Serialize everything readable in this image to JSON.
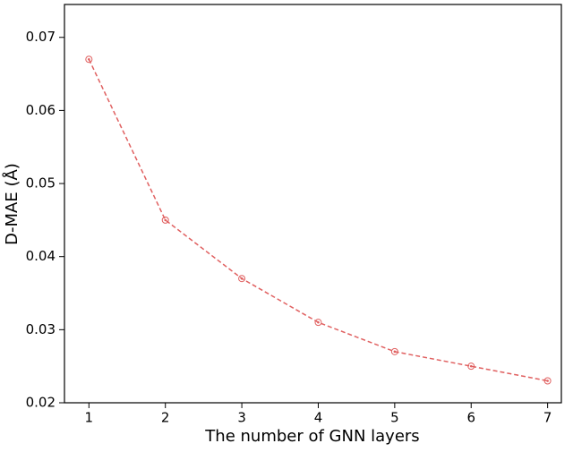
{
  "chart_data": {
    "type": "line",
    "x_label": "The number of GNN layers",
    "y_label": "D-MAE (Å)",
    "x": [
      1,
      2,
      3,
      4,
      5,
      6,
      7
    ],
    "series": [
      {
        "color": "#e06060",
        "values": [
          0.067,
          0.045,
          0.037,
          0.031,
          0.027,
          0.025,
          0.023
        ]
      }
    ],
    "xlim": [
      0.68,
      7.18
    ],
    "xticks": [
      1,
      2,
      3,
      4,
      5,
      6,
      7
    ],
    "ylim": [
      0.02,
      0.0745
    ],
    "yticks": [
      0.02,
      0.03,
      0.04,
      0.05,
      0.06,
      0.07
    ],
    "grid": false
  }
}
